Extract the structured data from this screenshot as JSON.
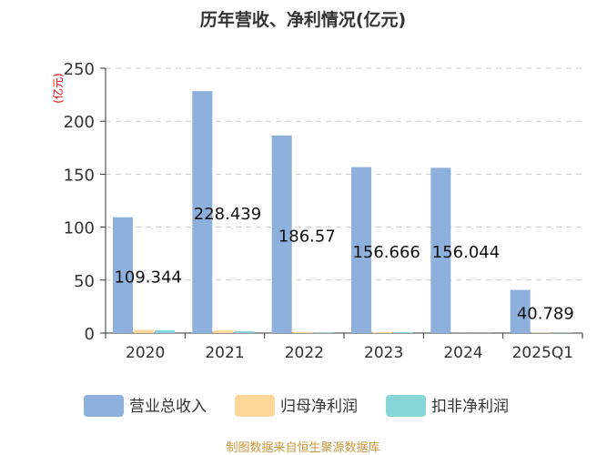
{
  "chart_data": {
    "type": "bar",
    "title": "历年营收、净利情况(亿元)",
    "ylabel": "(亿元)",
    "ylim": [
      0,
      250
    ],
    "yticks": [
      0,
      50,
      100,
      150,
      200,
      250
    ],
    "grid": true,
    "legend_position": "bottom",
    "categories": [
      "2020",
      "2021",
      "2022",
      "2023",
      "2024",
      "2025Q1"
    ],
    "series": [
      {
        "name": "营业总收入",
        "color": "#8eb0dd",
        "values": [
          109.344,
          228.439,
          186.57,
          156.666,
          156.044,
          40.789
        ],
        "labels": [
          "109.344",
          "228.439",
          "186.57",
          "156.666",
          "156.044",
          "40.789"
        ]
      },
      {
        "name": "归母净利润",
        "color": "#fdd89a",
        "values": [
          3.0,
          2.5,
          0.8,
          0.8,
          0.1,
          0.3
        ]
      },
      {
        "name": "扣非净利润",
        "color": "#86d6d8",
        "values": [
          2.7,
          1.8,
          0.3,
          0.8,
          0.1,
          0.2
        ]
      }
    ]
  },
  "footer": "制图数据来自恒生聚源数据库"
}
